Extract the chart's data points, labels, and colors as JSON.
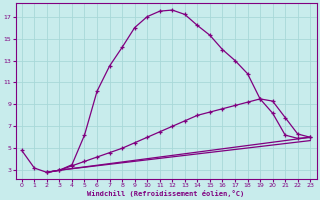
{
  "xlabel": "Windchill (Refroidissement éolien,°C)",
  "bg_color": "#c8ecec",
  "line_color": "#800080",
  "grid_color": "#a8d8d8",
  "x_ticks": [
    0,
    1,
    2,
    3,
    4,
    5,
    6,
    7,
    8,
    9,
    10,
    11,
    12,
    13,
    14,
    15,
    16,
    17,
    18,
    19,
    20,
    21,
    22,
    23
  ],
  "y_ticks": [
    3,
    5,
    7,
    9,
    11,
    13,
    15,
    17
  ],
  "xlim": [
    -0.5,
    23.5
  ],
  "ylim": [
    2.2,
    18.2
  ],
  "line1_x": [
    0,
    1,
    2,
    3,
    4,
    5,
    6,
    7,
    8,
    9,
    10,
    11,
    12,
    13,
    14,
    15,
    16,
    17,
    18,
    19,
    20,
    21,
    22,
    23
  ],
  "line1_y": [
    4.8,
    3.2,
    2.8,
    3.0,
    3.5,
    6.2,
    10.2,
    12.5,
    14.2,
    16.0,
    17.0,
    17.5,
    17.6,
    17.2,
    16.2,
    15.3,
    14.0,
    13.0,
    11.8,
    9.5,
    8.2,
    6.2,
    5.9,
    6.0
  ],
  "line2_x": [
    2,
    3,
    4,
    5,
    6,
    7,
    8,
    9,
    10,
    11,
    12,
    13,
    14,
    15,
    16,
    17,
    18,
    19,
    20,
    21,
    22,
    23
  ],
  "line2_y": [
    2.8,
    3.0,
    3.4,
    3.8,
    4.2,
    4.6,
    5.0,
    5.5,
    6.0,
    6.5,
    7.0,
    7.5,
    8.0,
    8.3,
    8.6,
    8.9,
    9.2,
    9.5,
    9.3,
    7.8,
    6.3,
    6.0
  ],
  "line3_x": [
    2,
    3,
    23
  ],
  "line3_y": [
    2.8,
    3.0,
    5.7
  ],
  "line4_x": [
    2,
    3,
    23
  ],
  "line4_y": [
    2.8,
    3.0,
    6.0
  ],
  "marker": "+"
}
